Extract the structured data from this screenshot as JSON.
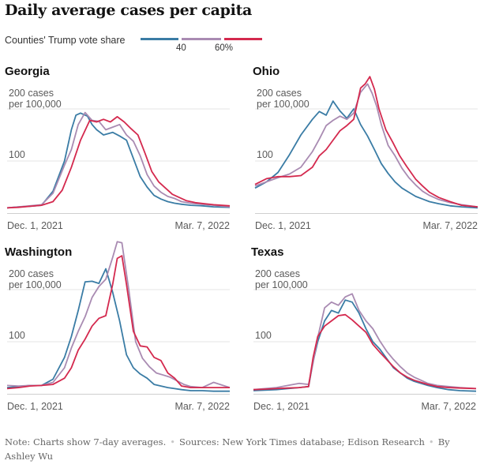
{
  "page_title": "Daily average cases per capita",
  "legend": {
    "label": "Counties' Trump vote share",
    "ticks": [
      "40",
      "60%"
    ],
    "colors": {
      "low": "#3a7ca5",
      "mid": "#a98bb2",
      "high": "#d4294e"
    }
  },
  "footer": {
    "note": "Note: Charts show 7-day averages.",
    "sources": "Sources: New York Times database; Edison Research",
    "byline": "By Ashley Wu"
  },
  "chart_data": [
    {
      "type": "line",
      "title": "Georgia",
      "y_unit_label": [
        "200 cases",
        "per 100,000"
      ],
      "y_ticks": [
        100,
        200
      ],
      "ylim": [
        0,
        215
      ],
      "x_tick_labels": [
        "Dec. 1, 2021",
        "Mar. 7, 2022"
      ],
      "grid": true,
      "series": [
        {
          "color": "#3a7ca5",
          "x": [
            0,
            5,
            10,
            15,
            20,
            25,
            28,
            30,
            32,
            35,
            37,
            39,
            42,
            46,
            49,
            52,
            55,
            58,
            61,
            64,
            67,
            70,
            73,
            76,
            80,
            85,
            90,
            97
          ],
          "y": [
            10,
            12,
            13,
            15,
            42,
            100,
            160,
            188,
            192,
            186,
            170,
            160,
            150,
            155,
            148,
            140,
            105,
            70,
            50,
            34,
            27,
            22,
            19,
            17,
            15,
            14,
            12,
            11
          ]
        },
        {
          "color": "#a98bb2",
          "x": [
            0,
            5,
            10,
            15,
            20,
            25,
            28,
            31,
            34,
            37,
            40,
            43,
            46,
            49,
            52,
            55,
            58,
            61,
            64,
            67,
            70,
            73,
            76,
            80,
            85,
            90,
            97
          ],
          "y": [
            10,
            12,
            14,
            16,
            38,
            92,
            122,
            170,
            193,
            178,
            176,
            160,
            165,
            170,
            150,
            138,
            110,
            74,
            52,
            40,
            32,
            28,
            22,
            19,
            17,
            15,
            12
          ]
        },
        {
          "color": "#d4294e",
          "x": [
            0,
            5,
            10,
            15,
            20,
            24,
            28,
            32,
            36,
            39,
            42,
            45,
            48,
            51,
            54,
            57,
            60,
            63,
            66,
            69,
            72,
            75,
            78,
            82,
            86,
            90,
            97
          ],
          "y": [
            10,
            11,
            13,
            15,
            22,
            44,
            88,
            140,
            178,
            175,
            180,
            175,
            185,
            175,
            162,
            150,
            116,
            80,
            60,
            48,
            36,
            30,
            24,
            20,
            18,
            16,
            14
          ]
        }
      ]
    },
    {
      "type": "line",
      "title": "Ohio",
      "y_unit_label": [
        "200 cases",
        "per 100,000"
      ],
      "y_ticks": [
        100,
        200
      ],
      "ylim": [
        0,
        265
      ],
      "x_tick_labels": [
        "Dec. 1, 2021",
        "Mar. 7, 2022"
      ],
      "grid": true,
      "series": [
        {
          "color": "#3a7ca5",
          "x": [
            0,
            5,
            10,
            15,
            20,
            25,
            28,
            31,
            34,
            37,
            40,
            43,
            46,
            49,
            52,
            55,
            58,
            61,
            64,
            67,
            70,
            73,
            76,
            80,
            85,
            90,
            97
          ],
          "y": [
            48,
            60,
            78,
            112,
            150,
            180,
            195,
            188,
            215,
            196,
            182,
            200,
            170,
            148,
            122,
            95,
            76,
            60,
            48,
            40,
            32,
            27,
            22,
            18,
            14,
            12,
            10
          ]
        },
        {
          "color": "#a98bb2",
          "x": [
            0,
            5,
            10,
            15,
            20,
            25,
            28,
            31,
            34,
            37,
            40,
            43,
            46,
            49,
            51,
            53,
            55,
            58,
            61,
            64,
            67,
            70,
            73,
            76,
            80,
            85,
            90,
            97
          ],
          "y": [
            52,
            60,
            68,
            75,
            88,
            118,
            142,
            168,
            178,
            186,
            180,
            192,
            232,
            248,
            230,
            205,
            170,
            130,
            110,
            86,
            68,
            54,
            42,
            34,
            26,
            20,
            16,
            12
          ]
        },
        {
          "color": "#d4294e",
          "x": [
            0,
            5,
            10,
            15,
            20,
            25,
            28,
            31,
            34,
            37,
            40,
            43,
            46,
            48,
            50,
            52,
            54,
            57,
            60,
            63,
            66,
            70,
            73,
            76,
            80,
            85,
            90,
            97
          ],
          "y": [
            55,
            66,
            70,
            70,
            72,
            88,
            110,
            122,
            140,
            158,
            168,
            180,
            240,
            248,
            262,
            238,
            200,
            160,
            136,
            110,
            90,
            65,
            52,
            40,
            30,
            22,
            15,
            12
          ]
        }
      ]
    },
    {
      "type": "line",
      "title": "Washington",
      "y_unit_label": [
        "200 cases",
        "per 100,000"
      ],
      "y_ticks": [
        100,
        200
      ],
      "ylim": [
        0,
        305
      ],
      "x_tick_labels": [
        "Dec. 1, 2021",
        "Mar. 7, 2022"
      ],
      "grid": true,
      "series": [
        {
          "color": "#3a7ca5",
          "x": [
            0,
            5,
            10,
            15,
            20,
            25,
            28,
            31,
            34,
            37,
            40,
            43,
            46,
            49,
            52,
            55,
            58,
            61,
            64,
            67,
            70,
            73,
            76,
            80,
            85,
            90,
            97
          ],
          "y": [
            12,
            14,
            16,
            16,
            28,
            70,
            110,
            160,
            215,
            216,
            212,
            240,
            195,
            140,
            75,
            50,
            38,
            30,
            18,
            15,
            12,
            10,
            8,
            6,
            6,
            5,
            5
          ]
        },
        {
          "color": "#a98bb2",
          "x": [
            0,
            5,
            10,
            15,
            20,
            25,
            28,
            31,
            34,
            37,
            40,
            43,
            46,
            48,
            50,
            53,
            56,
            59,
            62,
            65,
            68,
            71,
            74,
            77,
            80,
            85,
            90,
            97
          ],
          "y": [
            16,
            15,
            16,
            16,
            22,
            50,
            88,
            120,
            148,
            185,
            206,
            220,
            262,
            292,
            290,
            200,
            100,
            68,
            52,
            40,
            36,
            32,
            25,
            18,
            14,
            12,
            22,
            12
          ]
        },
        {
          "color": "#d4294e",
          "x": [
            0,
            5,
            10,
            15,
            20,
            25,
            28,
            31,
            34,
            37,
            40,
            43,
            46,
            48,
            50,
            52,
            55,
            58,
            61,
            64,
            67,
            70,
            73,
            76,
            80,
            85,
            90,
            97
          ],
          "y": [
            10,
            12,
            15,
            16,
            18,
            30,
            50,
            84,
            105,
            130,
            145,
            150,
            210,
            260,
            265,
            210,
            120,
            92,
            90,
            70,
            64,
            40,
            30,
            15,
            12,
            12,
            12,
            12
          ]
        }
      ]
    },
    {
      "type": "line",
      "title": "Texas",
      "y_unit_label": [
        "200 cases",
        "per 100,000"
      ],
      "y_ticks": [
        100,
        200
      ],
      "ylim": [
        0,
        230
      ],
      "x_tick_labels": [
        "Dec. 1, 2021",
        "Mar. 7, 2022"
      ],
      "grid": true,
      "series": [
        {
          "color": "#3a7ca5",
          "x": [
            0,
            5,
            10,
            15,
            20,
            24,
            26,
            28,
            31,
            34,
            37,
            40,
            43,
            46,
            49,
            52,
            55,
            58,
            61,
            64,
            67,
            70,
            73,
            76,
            80,
            85,
            90,
            97
          ],
          "y": [
            6,
            7,
            8,
            10,
            12,
            14,
            62,
            100,
            140,
            160,
            155,
            180,
            176,
            155,
            125,
            100,
            86,
            68,
            50,
            40,
            30,
            24,
            20,
            16,
            12,
            8,
            6,
            5
          ]
        },
        {
          "color": "#a98bb2",
          "x": [
            0,
            5,
            10,
            15,
            20,
            24,
            26,
            28,
            31,
            34,
            37,
            40,
            43,
            46,
            49,
            52,
            55,
            58,
            61,
            64,
            67,
            70,
            73,
            76,
            80,
            85,
            90,
            97
          ],
          "y": [
            8,
            10,
            12,
            16,
            20,
            18,
            60,
            108,
            165,
            176,
            170,
            186,
            192,
            160,
            140,
            125,
            102,
            82,
            66,
            52,
            40,
            32,
            26,
            20,
            16,
            14,
            12,
            10
          ]
        },
        {
          "color": "#d4294e",
          "x": [
            0,
            5,
            10,
            15,
            20,
            24,
            26,
            28,
            31,
            34,
            37,
            40,
            43,
            46,
            49,
            52,
            55,
            58,
            61,
            64,
            67,
            70,
            73,
            76,
            80,
            85,
            90,
            97
          ],
          "y": [
            8,
            9,
            10,
            11,
            12,
            14,
            70,
            110,
            130,
            140,
            150,
            152,
            142,
            130,
            118,
            95,
            80,
            66,
            52,
            40,
            32,
            26,
            22,
            18,
            14,
            12,
            11,
            10
          ]
        }
      ]
    }
  ]
}
